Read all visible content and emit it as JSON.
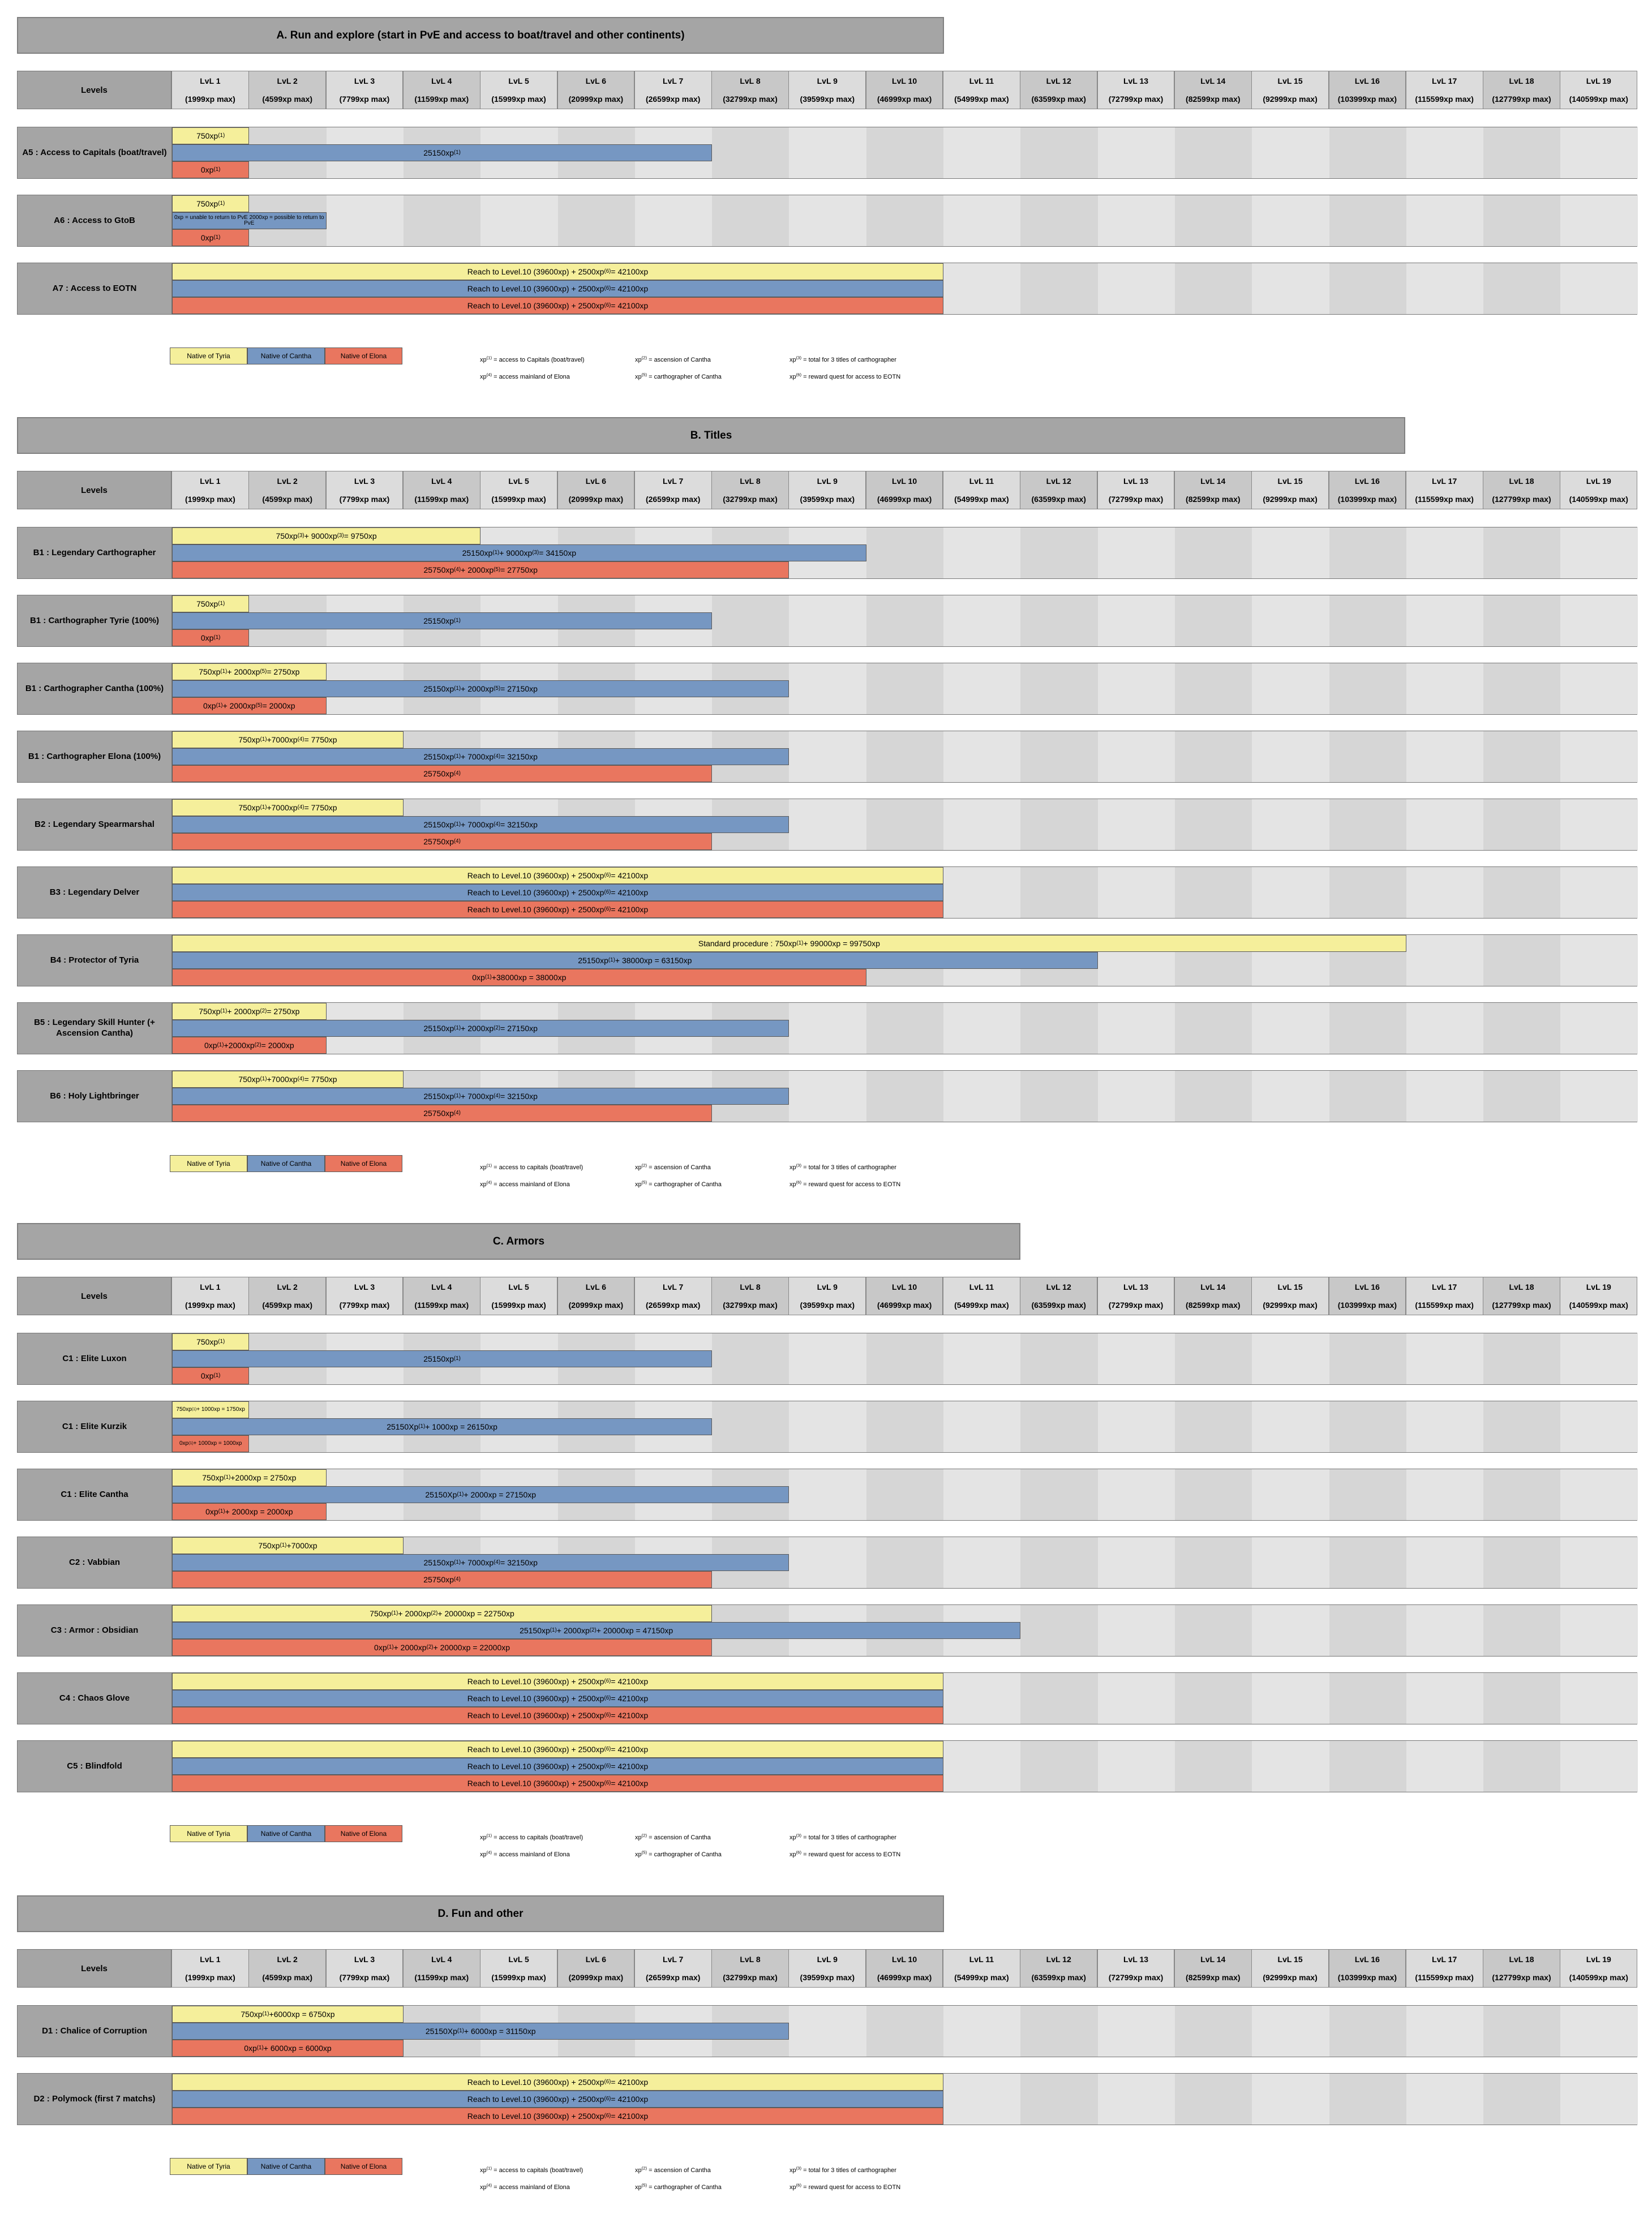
{
  "header": {
    "label": "Levels",
    "levels": [
      {
        "name": "LvL 1",
        "xp": "(1999xp max)"
      },
      {
        "name": "LvL 2",
        "xp": "(4599xp max)"
      },
      {
        "name": "LvL 3",
        "xp": "(7799xp max)"
      },
      {
        "name": "LvL 4",
        "xp": "(11599xp max)"
      },
      {
        "name": "LvL 5",
        "xp": "(15999xp max)"
      },
      {
        "name": "LvL 6",
        "xp": "(20999xp max)"
      },
      {
        "name": "LvL 7",
        "xp": "(26599xp max)"
      },
      {
        "name": "LvL 8",
        "xp": "(32799xp max)"
      },
      {
        "name": "LvL 9",
        "xp": "(39599xp max)"
      },
      {
        "name": "LvL 10",
        "xp": "(46999xp max)"
      },
      {
        "name": "LvL 11",
        "xp": "(54999xp max)"
      },
      {
        "name": "LvL 12",
        "xp": "(63599xp max)"
      },
      {
        "name": "LvL 13",
        "xp": "(72799xp max)"
      },
      {
        "name": "LvL 14",
        "xp": "(82599xp max)"
      },
      {
        "name": "LvL 15",
        "xp": "(92999xp max)"
      },
      {
        "name": "LvL 16",
        "xp": "(103999xp max)"
      },
      {
        "name": "LvL 17",
        "xp": "(115599xp max)"
      },
      {
        "name": "LvL 18",
        "xp": "(127799xp max)"
      },
      {
        "name": "LvL 19",
        "xp": "(140599xp max)"
      }
    ]
  },
  "legend": {
    "tyria": "Native of Tyria",
    "cantha": "Native of Cantha",
    "elona": "Native of Elona"
  },
  "footnotes": [
    {
      "n": "1",
      "text": " = access to capitals (boat/travel)"
    },
    {
      "n": "2",
      "text": " = ascension of Cantha"
    },
    {
      "n": "3",
      "text": " = total for 3 titles of carthographer"
    },
    {
      "n": "4",
      "text": " = access mainland of Elona"
    },
    {
      "n": "5",
      "text": " = carthographer of Cantha"
    },
    {
      "n": "6",
      "text": " = reward quest for access to EOTN"
    }
  ],
  "footnotes_alt": [
    {
      "n": "1",
      "text": " = access to Capitals (boat/travel)"
    }
  ],
  "colors": {
    "tyria": "#f5ef9b",
    "cantha": "#7697c2",
    "elona": "#e9765f",
    "header": "#a5a5a5"
  },
  "sections": [
    {
      "title": "A. Run and explore (start in PvE and access to boat/travel and other continents)",
      "rows": [
        {
          "label": "A5 : Access to Capitals (boat/travel)",
          "bars": [
            {
              "nation": "tyria",
              "span": 1,
              "text": "750xp^(1)"
            },
            {
              "nation": "cantha",
              "span": 7,
              "text": "25150xp^(1)"
            },
            {
              "nation": "elona",
              "span": 1,
              "text": "0xp^(1)"
            }
          ]
        },
        {
          "label": "A6 : Access to GtoB",
          "bars": [
            {
              "nation": "tyria",
              "span": 1,
              "text": "750xp^(1)"
            },
            {
              "nation": "cantha",
              "span": 2,
              "small": true,
              "text": "0xp = unable to return to PvE 2000xp = possible to return to PvE"
            },
            {
              "nation": "elona",
              "span": 1,
              "text": "0xp^(1)"
            }
          ]
        },
        {
          "label": "A7 : Access to EOTN",
          "bars": [
            {
              "nation": "tyria",
              "span": 10,
              "text": "Reach to Level.10 (39600xp) + 2500xp^(6) = 42100xp"
            },
            {
              "nation": "cantha",
              "span": 10,
              "text": "Reach to Level.10 (39600xp) + 2500xp^(6) = 42100xp"
            },
            {
              "nation": "elona",
              "span": 10,
              "text": "Reach to Level.10 (39600xp) + 2500xp^(6) = 42100xp"
            }
          ]
        }
      ]
    },
    {
      "title": "B. Titles",
      "rows": [
        {
          "label": "B1 : Legendary Carthographer",
          "bars": [
            {
              "nation": "tyria",
              "span": 4,
              "text": "750xp^(3) + 9000xp^(3) = 9750xp"
            },
            {
              "nation": "cantha",
              "span": 9,
              "text": "25150xp^(1) + 9000xp^(3) = 34150xp"
            },
            {
              "nation": "elona",
              "span": 8,
              "text": "25750xp^(4) + 2000xp^(5) = 27750xp"
            }
          ]
        },
        {
          "label": "B1 : Carthographer Tyrie (100%)",
          "bars": [
            {
              "nation": "tyria",
              "span": 1,
              "text": "750xp^(1)"
            },
            {
              "nation": "cantha",
              "span": 7,
              "text": "25150xp^(1)"
            },
            {
              "nation": "elona",
              "span": 1,
              "text": "0xp^(1)"
            }
          ]
        },
        {
          "label": "B1 : Carthographer Cantha (100%)",
          "bars": [
            {
              "nation": "tyria",
              "span": 2,
              "text": "750xp^(1)+ 2000xp^(5) = 2750xp"
            },
            {
              "nation": "cantha",
              "span": 8,
              "text": "25150xp^(1) + 2000xp^(5) = 27150xp"
            },
            {
              "nation": "elona",
              "span": 2,
              "text": "0xp^(1) + 2000xp^(5) = 2000xp"
            }
          ]
        },
        {
          "label": "B1 : Carthographer Elona (100%)",
          "bars": [
            {
              "nation": "tyria",
              "span": 3,
              "text": "750xp^(1)+7000xp^(4) = 7750xp"
            },
            {
              "nation": "cantha",
              "span": 8,
              "text": "25150xp^(1) + 7000xp^(4) = 32150xp"
            },
            {
              "nation": "elona",
              "span": 7,
              "text": "25750xp^(4)"
            }
          ]
        },
        {
          "label": "B2 : Legendary Spearmarshal",
          "bars": [
            {
              "nation": "tyria",
              "span": 3,
              "text": "750xp^(1)+7000xp^(4) = 7750xp"
            },
            {
              "nation": "cantha",
              "span": 8,
              "text": "25150xp^(1) + 7000xp^(4) = 32150xp"
            },
            {
              "nation": "elona",
              "span": 7,
              "text": "25750xp^(4)"
            }
          ]
        },
        {
          "label": "B3 : Legendary Delver",
          "bars": [
            {
              "nation": "tyria",
              "span": 10,
              "text": "Reach to Level.10 (39600xp) + 2500xp^(6) = 42100xp"
            },
            {
              "nation": "cantha",
              "span": 10,
              "text": "Reach to Level.10 (39600xp) + 2500xp^(6) = 42100xp"
            },
            {
              "nation": "elona",
              "span": 10,
              "text": "Reach to Level.10 (39600xp) + 2500xp^(6) = 42100xp"
            }
          ]
        },
        {
          "label": "B4 : Protector of Tyria",
          "bars": [
            {
              "nation": "tyria",
              "span": 16,
              "text": "Standard procedure : 750xp^(1) + 99000xp = 99750xp"
            },
            {
              "nation": "cantha",
              "span": 12,
              "text": "25150xp^(1) + 38000xp = 63150xp"
            },
            {
              "nation": "elona",
              "span": 9,
              "text": "0xp^(1) +38000xp = 38000xp"
            }
          ]
        },
        {
          "label": "B5 : Legendary Skill Hunter (+ Ascension Cantha)",
          "bars": [
            {
              "nation": "tyria",
              "span": 2,
              "text": "750xp^(1) + 2000xp^(2) = 2750xp"
            },
            {
              "nation": "cantha",
              "span": 8,
              "text": "25150xp^(1) + 2000xp^(2) = 27150xp"
            },
            {
              "nation": "elona",
              "span": 2,
              "text": "0xp^(1) +2000xp^(2) = 2000xp"
            }
          ]
        },
        {
          "label": "B6 : Holy Lightbringer",
          "bars": [
            {
              "nation": "tyria",
              "span": 3,
              "text": "750xp^(1)+7000xp^(4) = 7750xp"
            },
            {
              "nation": "cantha",
              "span": 8,
              "text": "25150xp^(1) + 7000xp^(4) = 32150xp"
            },
            {
              "nation": "elona",
              "span": 7,
              "text": "25750xp^(4)"
            }
          ]
        }
      ]
    },
    {
      "title": "C. Armors",
      "rows": [
        {
          "label": "C1 : Elite Luxon",
          "bars": [
            {
              "nation": "tyria",
              "span": 1,
              "text": "750xp^(1)"
            },
            {
              "nation": "cantha",
              "span": 7,
              "text": "25150xp^(1)"
            },
            {
              "nation": "elona",
              "span": 1,
              "text": "0xp^(1)"
            }
          ]
        },
        {
          "label": "C1 : Elite Kurzik",
          "bars": [
            {
              "nation": "tyria",
              "span": 1,
              "small": true,
              "text": "750xp^(1)+ 1000xp = 1750xp"
            },
            {
              "nation": "cantha",
              "span": 7,
              "text": "25150Xp^(1) + 1000xp = 26150xp"
            },
            {
              "nation": "elona",
              "span": 1,
              "small": true,
              "text": "0xp^(1)+ 1000xp = 1000xp"
            }
          ]
        },
        {
          "label": "C1 : Elite Cantha",
          "bars": [
            {
              "nation": "tyria",
              "span": 2,
              "text": "750xp^(1)+2000xp = 2750xp"
            },
            {
              "nation": "cantha",
              "span": 8,
              "text": "25150Xp^(1) + 2000xp = 27150xp"
            },
            {
              "nation": "elona",
              "span": 2,
              "text": "0xp^(1) + 2000xp = 2000xp"
            }
          ]
        },
        {
          "label": "C2 : Vabbian",
          "bars": [
            {
              "nation": "tyria",
              "span": 3,
              "text": "750xp^(1)+7000xp"
            },
            {
              "nation": "cantha",
              "span": 8,
              "text": "25150xp^(1) + 7000xp^(4) = 32150xp"
            },
            {
              "nation": "elona",
              "span": 7,
              "text": "25750xp^(4)"
            }
          ]
        },
        {
          "label": "C3 : Armor : Obsidian",
          "bars": [
            {
              "nation": "tyria",
              "span": 7,
              "text": "750xp^(1) + 2000xp^(2) + 20000xp = 22750xp"
            },
            {
              "nation": "cantha",
              "span": 11,
              "text": "25150xp^(1) + 2000xp^(2) + 20000xp = 47150xp"
            },
            {
              "nation": "elona",
              "span": 7,
              "text": "0xp^(1) + 2000xp^(2) + 20000xp = 22000xp"
            }
          ]
        },
        {
          "label": "C4 : Chaos Glove",
          "bars": [
            {
              "nation": "tyria",
              "span": 10,
              "text": "Reach to Level.10 (39600xp) + 2500xp^(6) = 42100xp"
            },
            {
              "nation": "cantha",
              "span": 10,
              "text": "Reach to Level.10 (39600xp) + 2500xp^(6) = 42100xp"
            },
            {
              "nation": "elona",
              "span": 10,
              "text": "Reach to Level.10 (39600xp) + 2500xp^(6) = 42100xp"
            }
          ]
        },
        {
          "label": "C5 : Blindfold",
          "bars": [
            {
              "nation": "tyria",
              "span": 10,
              "text": "Reach to Level.10 (39600xp) + 2500xp^(6) = 42100xp"
            },
            {
              "nation": "cantha",
              "span": 10,
              "text": "Reach to Level.10 (39600xp) + 2500xp^(6) = 42100xp"
            },
            {
              "nation": "elona",
              "span": 10,
              "text": "Reach to Level.10 (39600xp) + 2500xp^(6) = 42100xp"
            }
          ]
        }
      ]
    },
    {
      "title": "D. Fun and other",
      "rows": [
        {
          "label": "D1 : Chalice of Corruption",
          "bars": [
            {
              "nation": "tyria",
              "span": 3,
              "text": "750xp^(1)+6000xp = 6750xp"
            },
            {
              "nation": "cantha",
              "span": 8,
              "text": "25150Xp^(1) + 6000xp = 31150xp"
            },
            {
              "nation": "elona",
              "span": 3,
              "text": "0xp^(1) + 6000xp = 6000xp"
            }
          ]
        },
        {
          "label": "D2 : Polymock (first 7 matchs)",
          "bars": [
            {
              "nation": "tyria",
              "span": 10,
              "text": "Reach to Level.10 (39600xp) + 2500xp^(6) = 42100xp"
            },
            {
              "nation": "cantha",
              "span": 10,
              "text": "Reach to Level.10 (39600xp) + 2500xp^(6) = 42100xp"
            },
            {
              "nation": "elona",
              "span": 10,
              "text": "Reach to Level.10 (39600xp) + 2500xp^(6) = 42100xp"
            }
          ]
        }
      ]
    }
  ]
}
